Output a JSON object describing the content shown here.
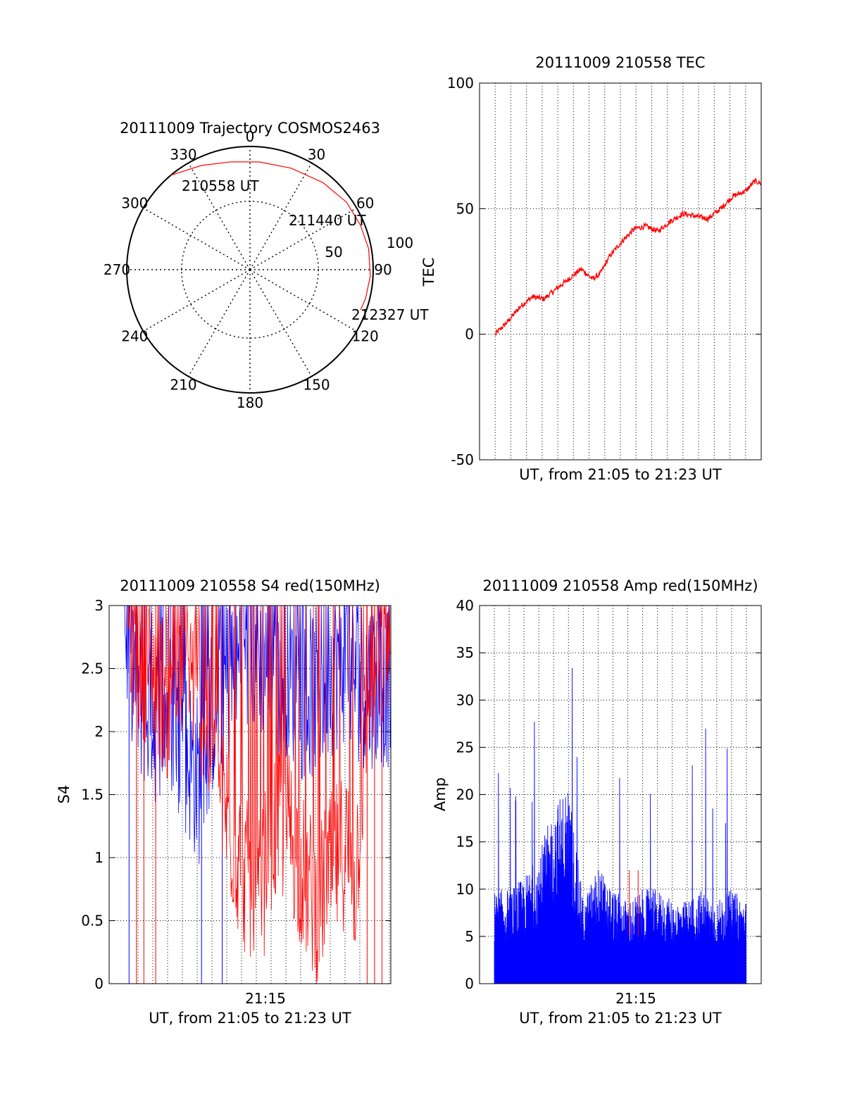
{
  "chart_data": [
    {
      "type": "polar",
      "title": "20111009 Trajectory COSMOS2463",
      "azimuth_labels": [
        "0",
        "30",
        "60",
        "90",
        "120",
        "150",
        "180",
        "210",
        "240",
        "270",
        "300",
        "330"
      ],
      "radial_labels": [
        "50",
        "100"
      ],
      "grid": true,
      "colors": {
        "trajectory": "#ff0000",
        "grid": "#000000"
      },
      "series": [
        {
          "points": [
            {
              "az": 320,
              "zen": 90
            },
            {
              "az": 335,
              "zen": 84
            },
            {
              "az": 350,
              "zen": 80
            },
            {
              "az": 5,
              "zen": 79
            },
            {
              "az": 22,
              "zen": 80
            },
            {
              "az": 40,
              "zen": 83
            },
            {
              "az": 55,
              "zen": 86
            },
            {
              "az": 68,
              "zen": 87
            },
            {
              "az": 80,
              "zen": 88
            },
            {
              "az": 93,
              "zen": 88
            },
            {
              "az": 104,
              "zen": 87
            },
            {
              "az": 110,
              "zen": 86
            }
          ]
        }
      ],
      "annotations": [
        "210558 UT",
        "211440 UT",
        "212327 UT"
      ]
    },
    {
      "type": "line",
      "title": "20111009 210558 TEC",
      "xlabel": "UT, from 21:05 to 21:23 UT",
      "ylabel": "TEC",
      "ylim": [
        -50,
        100
      ],
      "yticks": [
        "100",
        "50",
        "0",
        "-50"
      ],
      "grid": true,
      "colors": {
        "line": "#ff0000"
      },
      "series": [
        {
          "x_minutes": [
            1.0,
            1.8,
            2.6,
            3.4,
            4.1,
            4.9,
            5.7,
            6.5,
            7.2,
            7.7,
            8.3,
            9.1,
            9.9,
            10.6,
            11.4,
            12.2,
            13.0,
            13.8,
            14.6,
            15.4,
            16.2,
            17.0,
            17.6,
            18.0
          ],
          "values": [
            0,
            5,
            11,
            15,
            14,
            18,
            22,
            26,
            22,
            24,
            31,
            37,
            42,
            43,
            41,
            45,
            48,
            47,
            46,
            50,
            55,
            57,
            61,
            60
          ]
        }
      ]
    },
    {
      "type": "line",
      "title": "20111009 210558 S4 red(150MHz)",
      "xlabel": "UT, from 21:05 to 21:23 UT",
      "ylabel": "S4",
      "ylim": [
        0,
        3
      ],
      "yticks": [
        "3",
        "2.5",
        "2",
        "1.5",
        "1",
        "0.5",
        "0"
      ],
      "xticks": [
        "21:15"
      ],
      "grid": true,
      "colors": {
        "red": "#ff0000",
        "blue": "#0000ff"
      },
      "series": [
        {
          "name": "blue",
          "x_minutes": [
            0,
            1,
            2,
            3,
            4,
            5,
            6,
            7,
            8,
            9,
            10,
            11,
            12,
            13,
            14,
            15,
            16,
            17,
            18
          ],
          "values": [
            2.9,
            2.3,
            2.1,
            2.2,
            1.9,
            1.6,
            2.2,
            2.4,
            2.6,
            2.7,
            2.4,
            2.5,
            2.3,
            2.3,
            2.5,
            2.6,
            2.4,
            2.4,
            2.4
          ]
        },
        {
          "name": "red",
          "x_minutes": [
            0.2,
            1,
            2,
            3,
            4,
            5,
            6,
            7,
            8,
            9,
            10,
            11,
            12,
            13,
            14,
            15,
            15.6,
            16.5,
            17.5,
            18
          ],
          "values": [
            2.9,
            2.6,
            2.5,
            2.2,
            2.6,
            2.3,
            1.8,
            1.3,
            0.9,
            0.6,
            1.2,
            1.3,
            0.9,
            0.6,
            0.9,
            1.1,
            0.8,
            2.4,
            2.6,
            2.8
          ]
        }
      ]
    },
    {
      "type": "bar",
      "title": "20111009 210558 Amp red(150MHz)",
      "xlabel": "UT, from 21:05 to 21:23 UT",
      "ylabel": "Amp",
      "ylim": [
        0,
        40
      ],
      "yticks": [
        "40",
        "35",
        "30",
        "25",
        "20",
        "15",
        "10",
        "5",
        "0"
      ],
      "xticks": [
        "21:15"
      ],
      "grid": true,
      "colors": {
        "bars": "#0000ff",
        "red": "#ff0000"
      },
      "series": [
        {
          "name": "blue",
          "x_minutes": [
            1,
            2,
            3,
            4,
            5,
            6,
            7,
            8,
            9,
            10,
            11,
            12,
            13,
            14,
            15,
            16,
            17,
            18
          ],
          "values": [
            8,
            8,
            9,
            11,
            15,
            17,
            7,
            10,
            8,
            7,
            8,
            8,
            7,
            7,
            8,
            7,
            8,
            7
          ]
        }
      ]
    }
  ]
}
